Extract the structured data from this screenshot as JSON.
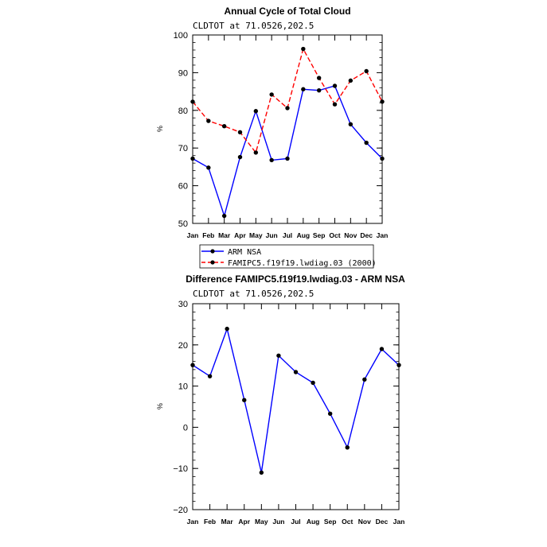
{
  "chart_data": [
    {
      "type": "line",
      "title": "Annual Cycle of Total Cloud",
      "subtitle": "CLDTOT at 71.0526,202.5",
      "ylabel": "%",
      "ylim": [
        50,
        100
      ],
      "yticks": [
        50,
        60,
        70,
        80,
        90,
        100
      ],
      "categories": [
        "Jan",
        "Feb",
        "Mar",
        "Apr",
        "May",
        "Jun",
        "Jul",
        "Aug",
        "Sep",
        "Oct",
        "Nov",
        "Dec",
        "Jan"
      ],
      "series": [
        {
          "name": "ARM NSA",
          "color": "#0000ff",
          "dash": "solid",
          "values": [
            67.2,
            64.8,
            52.0,
            67.6,
            79.8,
            66.8,
            67.2,
            85.6,
            85.3,
            86.5,
            76.3,
            71.4,
            67.2
          ]
        },
        {
          "name": "FAMIPC5.f19f19.lwdiag.03 (2000)",
          "color": "#ff0000",
          "dash": "dashed",
          "values": [
            82.3,
            77.2,
            75.8,
            74.2,
            68.8,
            84.2,
            80.6,
            96.3,
            88.6,
            81.6,
            87.9,
            90.4,
            82.3
          ]
        }
      ],
      "legend_position": "bottom"
    },
    {
      "type": "line",
      "title": "Difference FAMIPC5.f19f19.lwdiag.03 - ARM NSA",
      "subtitle": "CLDTOT at 71.0526,202.5",
      "ylabel": "%",
      "ylim": [
        -20,
        30
      ],
      "yticks": [
        -20,
        -10,
        0,
        10,
        20,
        30
      ],
      "ytick_labels": [
        "−20",
        "−10",
        "0",
        "10",
        "20",
        "30"
      ],
      "categories": [
        "Jan",
        "Feb",
        "Mar",
        "Apr",
        "May",
        "Jun",
        "Jul",
        "Aug",
        "Sep",
        "Oct",
        "Nov",
        "Dec",
        "Jan"
      ],
      "series": [
        {
          "color": "#0000ff",
          "values": [
            15.1,
            12.4,
            23.9,
            6.6,
            -11.0,
            17.4,
            13.4,
            10.8,
            3.3,
            -4.9,
            11.6,
            19.0,
            15.1
          ]
        }
      ]
    }
  ]
}
